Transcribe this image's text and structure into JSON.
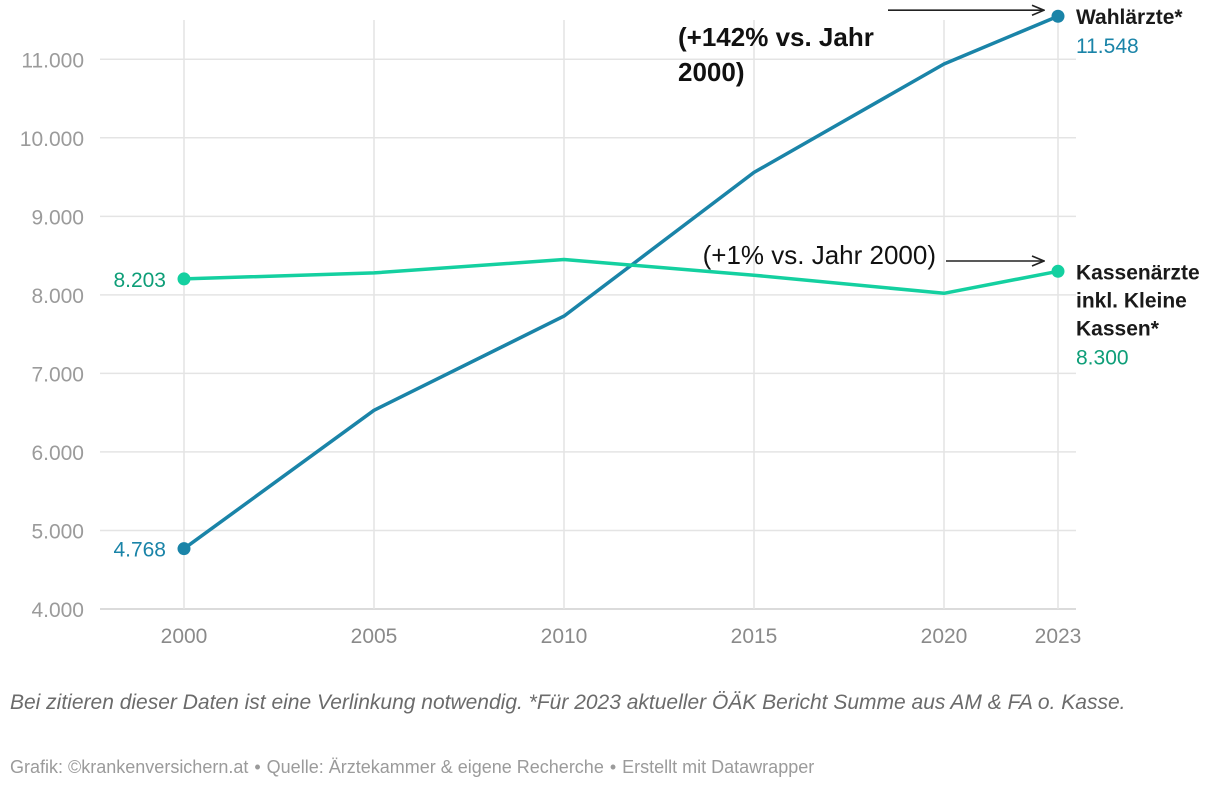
{
  "chart_data": {
    "type": "line",
    "x": [
      2000,
      2005,
      2010,
      2015,
      2020,
      2023
    ],
    "xticks": [
      "2000",
      "2005",
      "2010",
      "2015",
      "2020",
      "2023"
    ],
    "ylim": [
      4000,
      11500
    ],
    "yticks": [
      4000,
      5000,
      6000,
      7000,
      8000,
      9000,
      10000,
      11000
    ],
    "ytick_labels": [
      "4.000",
      "5.000",
      "6.000",
      "7.000",
      "8.000",
      "9.000",
      "10.000",
      "11.000"
    ],
    "grid": true,
    "series": [
      {
        "name": "Wahlärzte*",
        "name_lines": [
          "Wahlärzte*"
        ],
        "color": "#1a84a8",
        "values": [
          4768,
          6530,
          7730,
          9560,
          10940,
          11548
        ],
        "start_label": "4.768",
        "end_label": "11.548",
        "annotation_lines": [
          "(+142% vs. Jahr",
          "2000)"
        ]
      },
      {
        "name": "Kassenärzte inkl. Kleine Kassen*",
        "name_lines": [
          "Kassenärzte",
          "inkl. Kleine",
          "Kassen*"
        ],
        "color": "#14d0a0",
        "label_color": "#0e9e78",
        "values": [
          8203,
          8280,
          8450,
          8250,
          8020,
          8300
        ],
        "start_label": "8.203",
        "end_label": "8.300",
        "annotation_lines": [
          "(+1% vs. Jahr 2000)"
        ]
      }
    ]
  },
  "note": "Bei zitieren dieser Daten ist eine Verlinkung notwendig. *Für 2023 aktueller ÖÄK Bericht Summe aus AM & FA o. Kasse.",
  "credits": {
    "grafik": "Grafik: ©krankenversichern.at",
    "quelle": "Quelle: Ärztekammer & eigene Recherche",
    "erstellt": "Erstellt mit Datawrapper",
    "separator": "•"
  }
}
